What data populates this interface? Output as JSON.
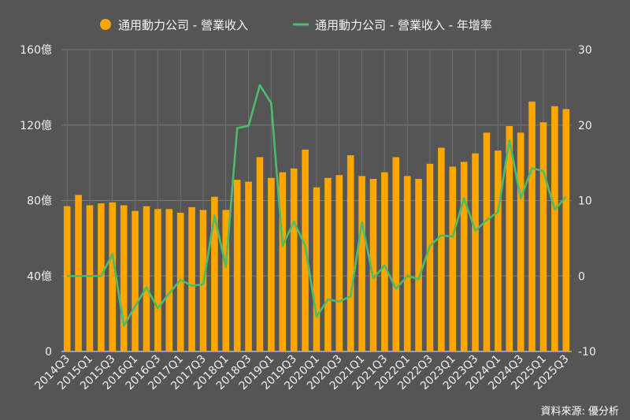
{
  "chart_data": {
    "type": "bar+line",
    "legend_position": "top",
    "series": [
      {
        "name": "通用動力公司 - 營業收入",
        "type": "bar",
        "axis": "left",
        "color": "#FFA500",
        "values": [
          77,
          83,
          77.5,
          78.5,
          79,
          77.5,
          74.5,
          77,
          75.5,
          75.5,
          73.5,
          76.5,
          75,
          82,
          75,
          91,
          90,
          103,
          92,
          95,
          97,
          107,
          87,
          92,
          93.5,
          104,
          93,
          91.5,
          95,
          103,
          93,
          91.5,
          99.5,
          108,
          98,
          100.5,
          105,
          116,
          106.5,
          119.5,
          116,
          132.5,
          121.5,
          130,
          128.5
        ]
      },
      {
        "name": "通用動力公司 - 營業收入 - 年增率",
        "type": "line",
        "axis": "right",
        "color": "#4CBB6C",
        "values": [
          0,
          0,
          0,
          0,
          2.9,
          -6.6,
          -4,
          -1.5,
          -4.3,
          -2.3,
          -0.5,
          -1.3,
          -1.1,
          8,
          1.2,
          19.6,
          19.9,
          25.3,
          22.9,
          4,
          7.2,
          4,
          -5.4,
          -3.1,
          -3.4,
          -2.7,
          7.1,
          -0.3,
          1.4,
          -1.7,
          0,
          -0.4,
          4,
          5.4,
          5.2,
          10.3,
          6,
          7.4,
          8.5,
          18,
          10.3,
          14.3,
          13.9,
          8.8,
          10.5
        ]
      }
    ],
    "x": [
      "2014Q3",
      "2014Q4",
      "2015Q1",
      "2015Q2",
      "2015Q3",
      "2015Q4",
      "2016Q1",
      "2016Q2",
      "2016Q3",
      "2016Q4",
      "2017Q1",
      "2017Q2",
      "2017Q3",
      "2017Q4",
      "2018Q1",
      "2018Q2",
      "2018Q3",
      "2018Q4",
      "2019Q1",
      "2019Q2",
      "2019Q3",
      "2019Q4",
      "2020Q1",
      "2020Q2",
      "2020Q3",
      "2020Q4",
      "2021Q1",
      "2021Q2",
      "2021Q3",
      "2021Q4",
      "2022Q1",
      "2022Q2",
      "2022Q3",
      "2022Q4",
      "2023Q1",
      "2023Q2",
      "2023Q3",
      "2023Q4",
      "2024Q1",
      "2024Q2",
      "2024Q3",
      "2024Q4",
      "2025Q1",
      "2025Q2",
      "2025Q3"
    ],
    "x_tick_labels": [
      "2014Q3",
      "2015Q1",
      "2015Q3",
      "2016Q1",
      "2016Q3",
      "2017Q1",
      "2017Q3",
      "2018Q1",
      "2018Q3",
      "2019Q1",
      "2019Q3",
      "2020Q1",
      "2020Q3",
      "2021Q1",
      "2021Q3",
      "2022Q1",
      "2022Q3",
      "2023Q1",
      "2023Q3",
      "2024Q1",
      "2024Q3",
      "2025Q1",
      "2025Q3"
    ],
    "y_left": {
      "ylim": [
        0,
        160
      ],
      "ticks": [
        0,
        40,
        80,
        120,
        160
      ],
      "tick_labels": [
        "0",
        "40億",
        "80億",
        "120億",
        "160億"
      ]
    },
    "y_right": {
      "ylim": [
        -10,
        30
      ],
      "ticks": [
        -10,
        0,
        10,
        20,
        30
      ],
      "tick_labels": [
        "-10",
        "0",
        "10",
        "20",
        "30"
      ]
    },
    "grid": true,
    "source": "資料來源: 優分析"
  }
}
